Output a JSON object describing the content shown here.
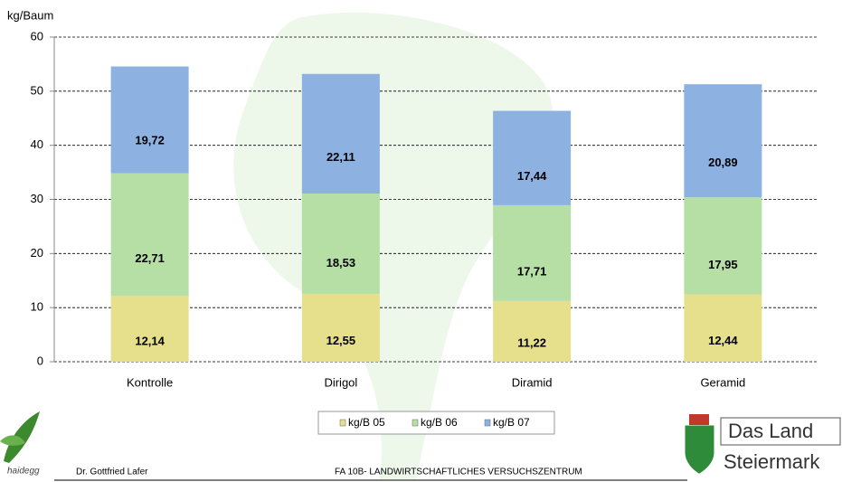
{
  "chart_data": {
    "type": "stacked_bar",
    "y_label": "kg/Baum",
    "categories": [
      "Kontrolle",
      "Dirigol",
      "Diramid",
      "Geramid"
    ],
    "series": [
      {
        "name": "kg/B 05",
        "color": "#e6df8c",
        "values": [
          12.14,
          12.55,
          11.22,
          12.44
        ],
        "value_labels": [
          "12,14",
          "12,55",
          "11,22",
          "12,44"
        ]
      },
      {
        "name": "kg/B 06",
        "color": "#b6dfa6",
        "values": [
          22.71,
          18.53,
          17.71,
          17.95
        ],
        "value_labels": [
          "22,71",
          "18,53",
          "17,71",
          "17,95"
        ]
      },
      {
        "name": "kg/B 07",
        "color": "#8db2e2",
        "values": [
          19.72,
          22.11,
          17.44,
          20.89
        ],
        "value_labels": [
          "19,72",
          "22,11",
          "17,44",
          "20,89"
        ]
      }
    ],
    "ylim": [
      0,
      60
    ],
    "yticks": [
      0,
      10,
      20,
      30,
      40,
      50,
      60
    ],
    "grid": true,
    "legend": "bottom"
  },
  "footer": {
    "logo_left": "haidegg",
    "author": "Dr. Gottfried Lafer",
    "institution": "FA 10B- LANDWIRTSCHAFTLICHES VERSUCHSZENTRUM",
    "logo_right_line1": "Das Land",
    "logo_right_line2": "Steiermark"
  }
}
